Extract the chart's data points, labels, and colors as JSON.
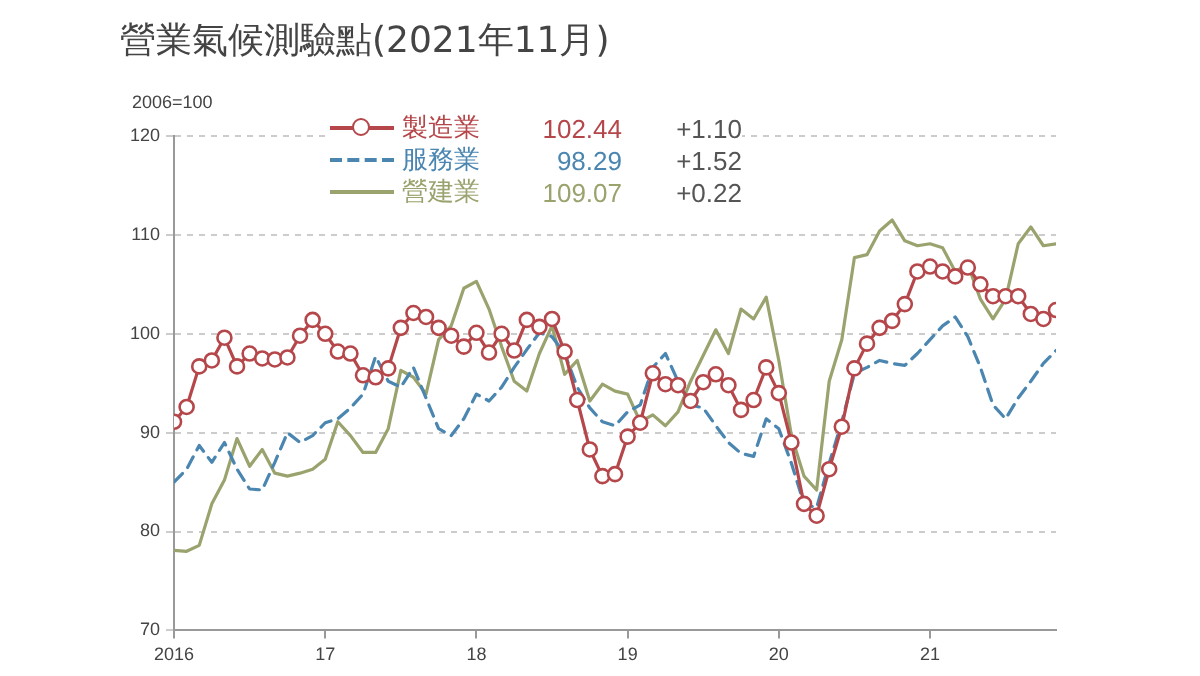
{
  "chart_data": {
    "type": "line",
    "title": "營業氣候測驗點(2021年11月)",
    "ylabel": "2006=100",
    "x": [
      "2016-01",
      "2016-02",
      "2016-03",
      "2016-04",
      "2016-05",
      "2016-06",
      "2016-07",
      "2016-08",
      "2016-09",
      "2016-10",
      "2016-11",
      "2016-12",
      "2017-01",
      "2017-02",
      "2017-03",
      "2017-04",
      "2017-05",
      "2017-06",
      "2017-07",
      "2017-08",
      "2017-09",
      "2017-10",
      "2017-11",
      "2017-12",
      "2018-01",
      "2018-02",
      "2018-03",
      "2018-04",
      "2018-05",
      "2018-06",
      "2018-07",
      "2018-08",
      "2018-09",
      "2018-10",
      "2018-11",
      "2018-12",
      "2019-01",
      "2019-02",
      "2019-03",
      "2019-04",
      "2019-05",
      "2019-06",
      "2019-07",
      "2019-08",
      "2019-09",
      "2019-10",
      "2019-11",
      "2019-12",
      "2020-01",
      "2020-02",
      "2020-03",
      "2020-04",
      "2020-05",
      "2020-06",
      "2020-07",
      "2020-08",
      "2020-09",
      "2020-10",
      "2020-11",
      "2020-12",
      "2021-01",
      "2021-02",
      "2021-03",
      "2021-04",
      "2021-05",
      "2021-06",
      "2021-07",
      "2021-08",
      "2021-09",
      "2021-10",
      "2021-11"
    ],
    "series": [
      {
        "name": "製造業",
        "color": "#b5474b",
        "marker": "circle",
        "line_style": "solid",
        "values": [
          91.1,
          92.6,
          96.7,
          97.3,
          99.6,
          96.7,
          98.0,
          97.5,
          97.4,
          97.6,
          99.8,
          101.4,
          100.0,
          98.2,
          98.0,
          95.8,
          95.6,
          96.5,
          100.6,
          102.1,
          101.7,
          100.6,
          99.8,
          98.7,
          100.1,
          98.1,
          100.0,
          98.3,
          101.4,
          100.7,
          101.5,
          98.2,
          93.3,
          88.3,
          85.6,
          85.8,
          89.6,
          91.0,
          96.0,
          94.9,
          94.8,
          93.2,
          95.1,
          95.9,
          94.8,
          92.3,
          93.3,
          96.6,
          94.0,
          89.0,
          82.8,
          81.6,
          86.3,
          90.6,
          96.5,
          99.0,
          100.6,
          101.3,
          103.0,
          106.3,
          106.8,
          106.3,
          105.8,
          106.7,
          105.0,
          103.8,
          103.8,
          103.8,
          102.0,
          101.5,
          102.4
        ]
      },
      {
        "name": "服務業",
        "color": "#4a86b0",
        "marker": "none",
        "line_style": "dashed",
        "values": [
          85.0,
          86.3,
          88.7,
          87.0,
          89.0,
          86.3,
          84.3,
          84.2,
          87.0,
          90.0,
          89.0,
          89.7,
          91.0,
          91.4,
          92.5,
          93.9,
          97.7,
          95.2,
          94.6,
          96.6,
          93.5,
          90.4,
          89.7,
          91.4,
          93.9,
          93.2,
          94.6,
          96.6,
          98.4,
          100.1,
          99.7,
          98.0,
          94.6,
          92.5,
          91.1,
          90.7,
          92.1,
          92.8,
          96.6,
          98.0,
          95.2,
          92.8,
          92.5,
          90.7,
          89.0,
          87.9,
          87.6,
          91.4,
          90.4,
          86.9,
          82.8,
          82.4,
          86.9,
          91.1,
          96.0,
          96.6,
          97.3,
          97.0,
          96.8,
          98.0,
          99.4,
          100.8,
          101.7,
          99.7,
          96.6,
          92.8,
          91.4,
          93.5,
          95.2,
          97.0,
          98.3
        ]
      },
      {
        "name": "營建業",
        "color": "#9aa26e",
        "marker": "none",
        "line_style": "solid",
        "values": [
          78.1,
          78.0,
          78.6,
          82.8,
          85.2,
          89.4,
          86.6,
          88.3,
          85.9,
          85.6,
          85.9,
          86.3,
          87.3,
          91.1,
          89.7,
          88.0,
          88.0,
          90.4,
          96.3,
          95.6,
          93.9,
          99.4,
          100.8,
          104.6,
          105.3,
          102.5,
          98.7,
          95.2,
          94.2,
          98.0,
          100.8,
          95.9,
          97.3,
          93.2,
          94.9,
          94.2,
          93.9,
          91.1,
          91.8,
          90.7,
          92.1,
          95.2,
          97.8,
          100.4,
          98.0,
          102.5,
          101.5,
          103.7,
          97.3,
          89.7,
          85.6,
          84.2,
          95.2,
          99.4,
          107.7,
          108.0,
          110.4,
          111.5,
          109.4,
          108.9,
          109.1,
          108.7,
          106.3,
          107.0,
          103.5,
          101.5,
          103.5,
          109.1,
          110.8,
          108.9,
          109.1
        ]
      }
    ],
    "annotations": [
      "102.44",
      "+1.10",
      "98.29",
      "+1.52",
      "109.07",
      "+0.22"
    ],
    "xlim": [
      "2016-01",
      "2021-11"
    ],
    "xticks": [
      {
        "value": "2016",
        "label": "2016"
      },
      {
        "value": "2017",
        "label": "17"
      },
      {
        "value": "2018",
        "label": "18"
      },
      {
        "value": "2019",
        "label": "19"
      },
      {
        "value": "2020",
        "label": "20"
      },
      {
        "value": "2021",
        "label": "21"
      }
    ],
    "ylim": [
      70,
      120
    ],
    "yticks": [
      70,
      80,
      90,
      100,
      110,
      120
    ],
    "grid": "y",
    "legend": "top"
  }
}
